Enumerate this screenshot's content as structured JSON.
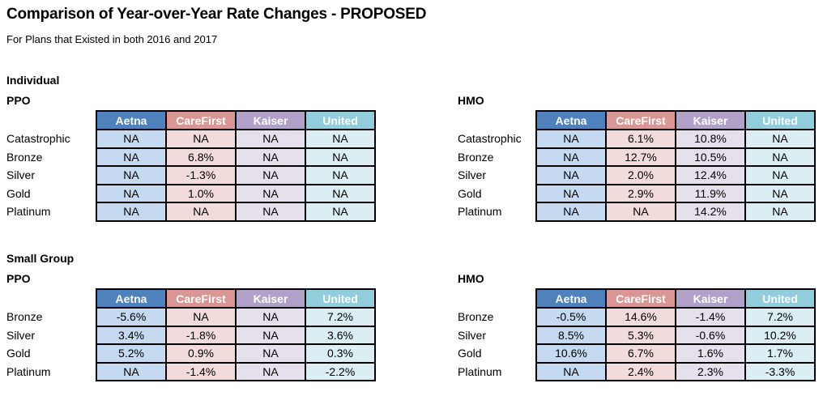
{
  "page": {
    "title": "Comparison of Year-over-Year Rate Changes - PROPOSED",
    "subtitle": "For Plans that Existed in both 2016 and 2017"
  },
  "columns": [
    "Aetna",
    "CareFirst",
    "Kaiser",
    "United"
  ],
  "colors": {
    "header": [
      "#4F81BD",
      "#D99694",
      "#B1A0C7",
      "#92CDDC"
    ],
    "body": [
      "#C5D9F1",
      "#F2DCDB",
      "#E5E0EC",
      "#DBEEF3"
    ],
    "border": "#000000",
    "header_text": "#FFFFFF"
  },
  "sections": [
    {
      "label": "Individual",
      "tables": [
        {
          "type_label": "PPO",
          "rows": [
            {
              "label": "Catastrophic",
              "values": [
                "NA",
                "NA",
                "NA",
                "NA"
              ]
            },
            {
              "label": "Bronze",
              "values": [
                "NA",
                "6.8%",
                "NA",
                "NA"
              ]
            },
            {
              "label": "Silver",
              "values": [
                "NA",
                "-1.3%",
                "NA",
                "NA"
              ]
            },
            {
              "label": "Gold",
              "values": [
                "NA",
                "1.0%",
                "NA",
                "NA"
              ]
            },
            {
              "label": "Platinum",
              "values": [
                "NA",
                "NA",
                "NA",
                "NA"
              ]
            }
          ]
        },
        {
          "type_label": "HMO",
          "rows": [
            {
              "label": "Catastrophic",
              "values": [
                "NA",
                "6.1%",
                "10.8%",
                "NA"
              ]
            },
            {
              "label": "Bronze",
              "values": [
                "NA",
                "12.7%",
                "10.5%",
                "NA"
              ]
            },
            {
              "label": "Silver",
              "values": [
                "NA",
                "2.0%",
                "12.4%",
                "NA"
              ]
            },
            {
              "label": "Gold",
              "values": [
                "NA",
                "2.9%",
                "11.9%",
                "NA"
              ]
            },
            {
              "label": "Platinum",
              "values": [
                "NA",
                "NA",
                "14.2%",
                "NA"
              ]
            }
          ]
        }
      ]
    },
    {
      "label": "Small Group",
      "tables": [
        {
          "type_label": "PPO",
          "rows": [
            {
              "label": "Bronze",
              "values": [
                "-5.6%",
                "NA",
                "NA",
                "7.2%"
              ]
            },
            {
              "label": "Silver",
              "values": [
                "3.4%",
                "-1.8%",
                "NA",
                "3.6%"
              ]
            },
            {
              "label": "Gold",
              "values": [
                "5.2%",
                "0.9%",
                "NA",
                "0.3%"
              ]
            },
            {
              "label": "Platinum",
              "values": [
                "NA",
                "-1.4%",
                "NA",
                "-2.2%"
              ]
            }
          ]
        },
        {
          "type_label": "HMO",
          "rows": [
            {
              "label": "Bronze",
              "values": [
                "-0.5%",
                "14.6%",
                "-1.4%",
                "7.2%"
              ]
            },
            {
              "label": "Silver",
              "values": [
                "8.5%",
                "5.3%",
                "-0.6%",
                "10.2%"
              ]
            },
            {
              "label": "Gold",
              "values": [
                "10.6%",
                "6.7%",
                "1.6%",
                "1.7%"
              ]
            },
            {
              "label": "Platinum",
              "values": [
                "NA",
                "2.4%",
                "2.3%",
                "-3.3%"
              ]
            }
          ]
        }
      ]
    }
  ]
}
